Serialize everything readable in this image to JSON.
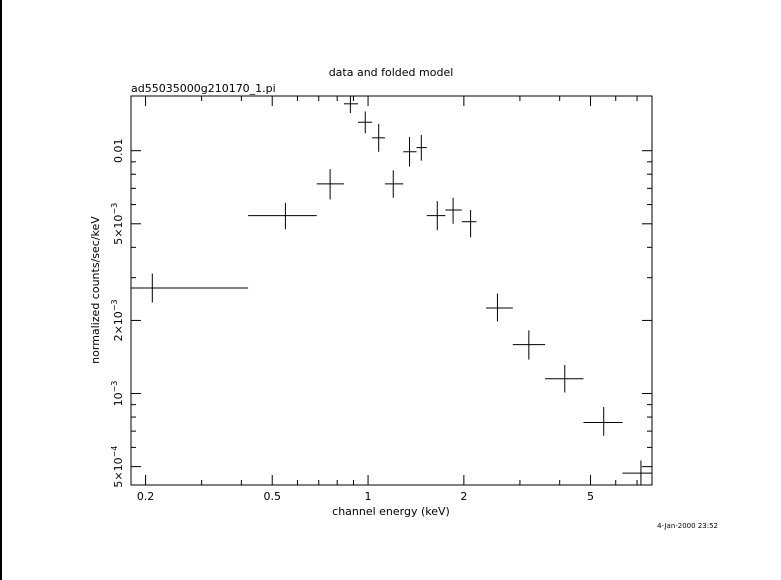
{
  "chart_data": {
    "type": "scatter",
    "title": "data and folded model",
    "subtitle": "ad55035000g210170_1.pi",
    "xlabel": "channel energy (keV)",
    "ylabel": "normalized counts/sec/keV",
    "timestamp": "4-Jan-2000 23:52",
    "x_scale": "log",
    "y_scale": "log",
    "xlim": [
      0.18,
      7.8
    ],
    "ylim": [
      0.00042,
      0.0168
    ],
    "x_ticks": [
      {
        "value": 0.2,
        "label": "0.2"
      },
      {
        "value": 0.5,
        "label": "0.5"
      },
      {
        "value": 1,
        "label": "1"
      },
      {
        "value": 2,
        "label": "2"
      },
      {
        "value": 5,
        "label": "5"
      }
    ],
    "y_ticks": [
      {
        "value": 0.01,
        "mantissa": "0.01",
        "exponent": ""
      },
      {
        "value": 0.005,
        "mantissa": "5×10",
        "exponent": "−3"
      },
      {
        "value": 0.002,
        "mantissa": "2×10",
        "exponent": "−3"
      },
      {
        "value": 0.001,
        "mantissa": "10",
        "exponent": "−3"
      },
      {
        "value": 0.0005,
        "mantissa": "5×10",
        "exponent": "−4"
      }
    ],
    "points": [
      {
        "x": 0.21,
        "y": 0.00272,
        "xlo": 0.18,
        "xhi": 0.42,
        "ylo": 0.00237,
        "yhi": 0.00312
      },
      {
        "x": 0.55,
        "y": 0.0054,
        "xlo": 0.42,
        "xhi": 0.69,
        "ylo": 0.00475,
        "yhi": 0.0061
      },
      {
        "x": 0.76,
        "y": 0.0073,
        "xlo": 0.69,
        "xhi": 0.84,
        "ylo": 0.0063,
        "yhi": 0.0084
      },
      {
        "x": 0.88,
        "y": 0.0156,
        "xlo": 0.84,
        "xhi": 0.93,
        "ylo": 0.0143,
        "yhi": 0.0168
      },
      {
        "x": 0.98,
        "y": 0.0131,
        "xlo": 0.93,
        "xhi": 1.03,
        "ylo": 0.0118,
        "yhi": 0.0145
      },
      {
        "x": 1.08,
        "y": 0.0113,
        "xlo": 1.03,
        "xhi": 1.13,
        "ylo": 0.0099,
        "yhi": 0.0129
      },
      {
        "x": 1.2,
        "y": 0.0073,
        "xlo": 1.13,
        "xhi": 1.29,
        "ylo": 0.0064,
        "yhi": 0.0083
      },
      {
        "x": 1.35,
        "y": 0.0099,
        "xlo": 1.29,
        "xhi": 1.42,
        "ylo": 0.0086,
        "yhi": 0.0114
      },
      {
        "x": 1.47,
        "y": 0.0103,
        "xlo": 1.42,
        "xhi": 1.53,
        "ylo": 0.0091,
        "yhi": 0.0116
      },
      {
        "x": 1.65,
        "y": 0.0054,
        "xlo": 1.53,
        "xhi": 1.75,
        "ylo": 0.0047,
        "yhi": 0.0062
      },
      {
        "x": 1.85,
        "y": 0.0057,
        "xlo": 1.75,
        "xhi": 1.97,
        "ylo": 0.005,
        "yhi": 0.0064
      },
      {
        "x": 2.1,
        "y": 0.0051,
        "xlo": 1.97,
        "xhi": 2.19,
        "ylo": 0.0044,
        "yhi": 0.0057
      },
      {
        "x": 2.55,
        "y": 0.00225,
        "xlo": 2.35,
        "xhi": 2.85,
        "ylo": 0.00198,
        "yhi": 0.00258
      },
      {
        "x": 3.2,
        "y": 0.00159,
        "xlo": 2.85,
        "xhi": 3.6,
        "ylo": 0.00138,
        "yhi": 0.00182
      },
      {
        "x": 4.15,
        "y": 0.00115,
        "xlo": 3.6,
        "xhi": 4.75,
        "ylo": 0.00101,
        "yhi": 0.00131
      },
      {
        "x": 5.5,
        "y": 0.00076,
        "xlo": 4.75,
        "xhi": 6.3,
        "ylo": 0.00067,
        "yhi": 0.00088
      },
      {
        "x": 7.2,
        "y": 0.00047,
        "xlo": 6.3,
        "xhi": 7.8,
        "ylo": 0.00042,
        "yhi": 0.00053
      }
    ]
  }
}
